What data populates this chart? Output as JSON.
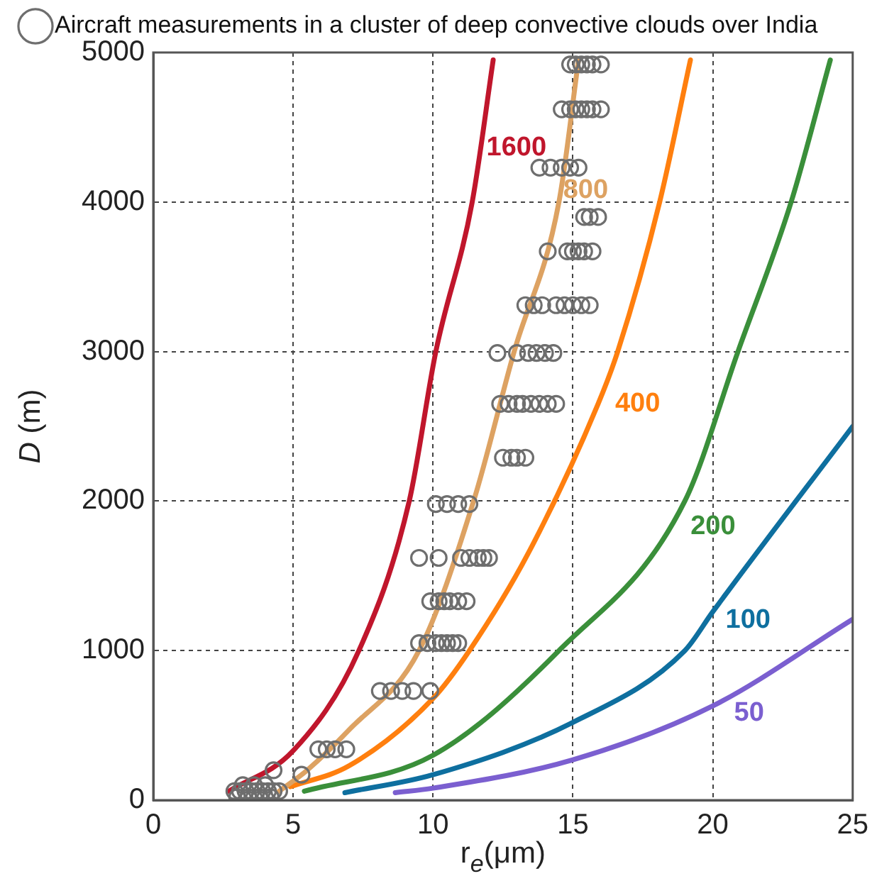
{
  "chart_data": {
    "type": "line",
    "xlabel": "r$_{e}$(μm)",
    "ylabel": "D (m)",
    "xlim": [
      0,
      25
    ],
    "xticks": [
      0,
      5,
      10,
      15,
      20,
      25
    ],
    "ylim": [
      0,
      5000
    ],
    "yticks": [
      0,
      1000,
      2000,
      3000,
      4000,
      5000
    ],
    "grid": true,
    "legend": "top left",
    "series": [
      {
        "name": "Aircraft measurements in a cluster of deep convective clouds over India",
        "type": "scatter",
        "marker": "circle",
        "color": "#6e6e6e",
        "x": [
          14.9,
          15.1,
          15.3,
          15.5,
          15.7,
          16.0,
          14.6,
          14.9,
          15.1,
          15.3,
          15.5,
          15.7,
          16.0,
          13.8,
          14.2,
          14.6,
          14.9,
          15.2,
          15.4,
          15.6,
          15.9,
          14.1,
          14.8,
          15.0,
          15.2,
          15.4,
          15.7,
          13.3,
          13.6,
          13.9,
          14.4,
          14.7,
          15.0,
          15.3,
          15.6,
          12.3,
          13.0,
          13.4,
          13.7,
          14.0,
          14.3,
          12.4,
          12.7,
          13.0,
          13.2,
          13.5,
          13.8,
          14.1,
          14.4,
          12.5,
          12.8,
          13.0,
          13.3,
          10.1,
          10.5,
          10.9,
          11.3,
          9.5,
          10.2,
          11.0,
          11.3,
          11.6,
          11.8,
          12.0,
          9.9,
          10.2,
          10.4,
          10.6,
          10.9,
          11.2,
          9.5,
          9.8,
          10.1,
          10.3,
          10.5,
          10.7,
          10.9,
          8.1,
          8.5,
          8.9,
          9.3,
          9.9,
          5.9,
          6.2,
          6.5,
          6.9,
          4.3,
          5.3,
          2.9,
          3.1,
          3.3,
          3.5,
          3.7,
          3.9,
          4.1,
          4.3,
          4.5,
          3.0,
          3.4,
          3.8,
          4.2,
          3.2,
          3.6,
          4.0
        ],
        "values": [
          4920,
          4920,
          4920,
          4920,
          4920,
          4920,
          4620,
          4620,
          4620,
          4620,
          4620,
          4620,
          4620,
          4230,
          4230,
          4230,
          4230,
          4230,
          3900,
          3900,
          3900,
          3670,
          3670,
          3670,
          3670,
          3670,
          3670,
          3310,
          3310,
          3310,
          3310,
          3310,
          3310,
          3310,
          3310,
          2990,
          2990,
          2990,
          2990,
          2990,
          2990,
          2650,
          2650,
          2650,
          2650,
          2650,
          2650,
          2650,
          2650,
          2290,
          2290,
          2290,
          2290,
          1980,
          1980,
          1980,
          1980,
          1620,
          1620,
          1620,
          1620,
          1620,
          1620,
          1620,
          1330,
          1330,
          1330,
          1330,
          1330,
          1330,
          1050,
          1050,
          1050,
          1050,
          1050,
          1050,
          1050,
          730,
          730,
          730,
          730,
          730,
          340,
          340,
          340,
          340,
          200,
          170,
          60,
          60,
          60,
          60,
          60,
          60,
          60,
          60,
          60,
          20,
          20,
          20,
          20,
          100,
          100,
          100
        ]
      },
      {
        "name": "1600",
        "type": "line",
        "color": "#c0162c",
        "x": [
          2.7,
          5,
          7.35,
          9.15,
          10.1,
          11.4,
          12.15
        ],
        "values": [
          60,
          330,
          1000,
          2000,
          3000,
          4000,
          4950
        ]
      },
      {
        "name": "800",
        "type": "line",
        "color": "#dda262",
        "x": [
          4.5,
          5.5,
          7,
          9.5,
          11.45,
          12.9,
          14.5,
          15.2
        ],
        "values": [
          60,
          200,
          470,
          1000,
          2000,
          3000,
          4000,
          4950
        ]
      },
      {
        "name": "400",
        "type": "line",
        "color": "#ff7f0e",
        "x": [
          4.9,
          7,
          10,
          11.3,
          13.4,
          15.9,
          16.6,
          18.1,
          19.2
        ],
        "values": [
          90,
          230,
          680,
          1000,
          1650,
          2650,
          3000,
          4000,
          4950
        ]
      },
      {
        "name": "200",
        "type": "line",
        "color": "#3a8f3a",
        "x": [
          5.4,
          10,
          14.5,
          19,
          20.9,
          22.8,
          24.2
        ],
        "values": [
          60,
          300,
          1000,
          2000,
          3000,
          4000,
          4950
        ]
      },
      {
        "name": "100",
        "type": "line",
        "color": "#0e6f9f",
        "x": [
          6.85,
          10,
          15,
          19,
          20,
          25
        ],
        "values": [
          50,
          170,
          520,
          1000,
          1260,
          2500
        ]
      },
      {
        "name": "50",
        "type": "line",
        "color": "#7b5fd0",
        "x": [
          8.65,
          10,
          15,
          20,
          25
        ],
        "values": [
          50,
          80,
          270,
          630,
          1210
        ]
      }
    ]
  }
}
